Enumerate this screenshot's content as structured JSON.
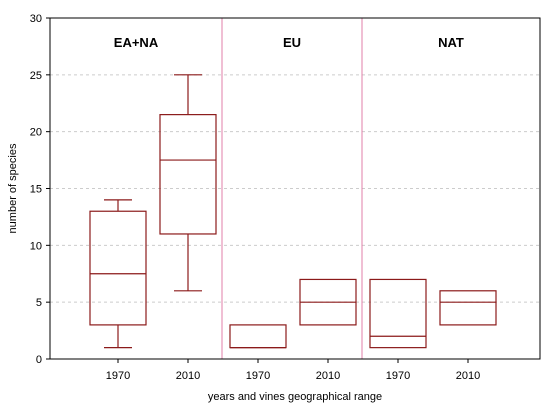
{
  "chart_data": {
    "type": "box",
    "xlabel": "years and vines geographical range",
    "ylabel": "number of species",
    "ylim": [
      0,
      30
    ],
    "yticks": [
      0,
      5,
      10,
      15,
      20,
      25,
      30
    ],
    "grid": true,
    "colors": {
      "box": "#8b1a1a",
      "separator": "#e07fa8",
      "grid": "#cccccc",
      "frame": "#000000"
    },
    "groups": [
      {
        "label": "EA+NA",
        "boxes": [
          {
            "category": "1970",
            "min": 1,
            "q1": 3,
            "median": 7.5,
            "q3": 13,
            "max": 14
          },
          {
            "category": "2010",
            "min": 6,
            "q1": 11,
            "median": 17.5,
            "q3": 21.5,
            "max": 25
          }
        ]
      },
      {
        "label": "EU",
        "boxes": [
          {
            "category": "1970",
            "min": 1,
            "q1": 1,
            "median": 1,
            "q3": 3,
            "max": 3
          },
          {
            "category": "2010",
            "min": 3,
            "q1": 3,
            "median": 5,
            "q3": 7,
            "max": 7
          }
        ]
      },
      {
        "label": "NAT",
        "boxes": [
          {
            "category": "1970",
            "min": 1,
            "q1": 1,
            "median": 2,
            "q3": 7,
            "max": 7
          },
          {
            "category": "2010",
            "min": 3,
            "q1": 3,
            "median": 5,
            "q3": 6,
            "max": 6
          }
        ]
      }
    ]
  }
}
